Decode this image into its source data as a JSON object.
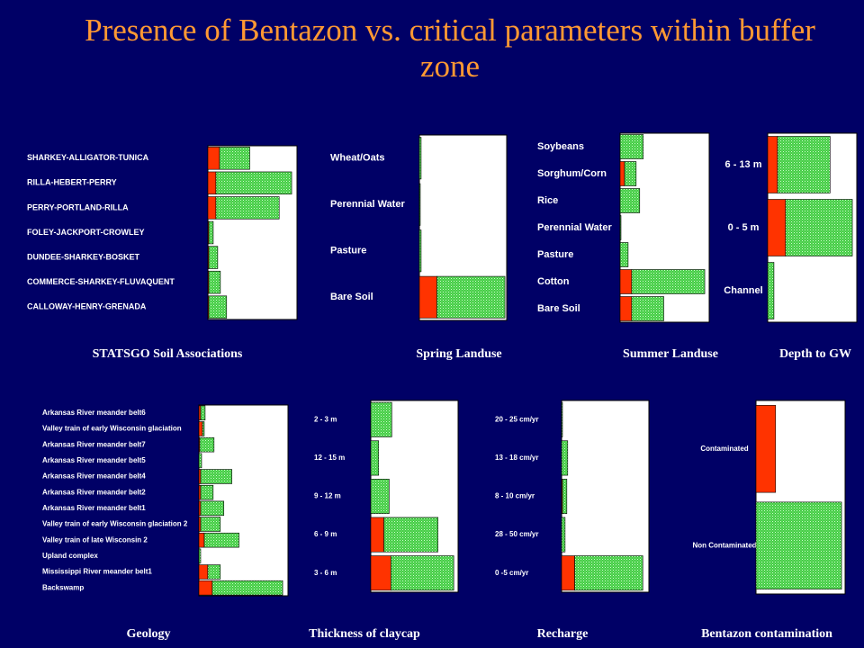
{
  "title": "Presence of Bentazon vs. critical parameters within buffer zone",
  "chart_data": [
    {
      "type": "bar",
      "title": "STATSGO Soil Associations",
      "orientation": "horizontal",
      "stacked": true,
      "xlim": [
        0,
        100
      ],
      "categories": [
        "SHARKEY-ALLIGATOR-TUNICA",
        "RILLA-HEBERT-PERRY",
        "PERRY-PORTLAND-RILLA",
        "FOLEY-JACKPORT-CROWLEY",
        "DUNDEE-SHARKEY-BOSKET",
        "COMMERCE-SHARKEY-FLUVAQUENT",
        "CALLOWAY-HENRY-GRENADA"
      ],
      "series": [
        {
          "color": "#ff3300",
          "values": [
            13,
            9,
            9,
            1,
            1,
            1,
            1
          ]
        },
        {
          "color": "#33cc33",
          "values": [
            34,
            85,
            71,
            5,
            10,
            13,
            20
          ]
        }
      ]
    },
    {
      "type": "bar",
      "title": "Spring Landuse",
      "orientation": "horizontal",
      "stacked": true,
      "xlim": [
        0,
        100
      ],
      "categories": [
        "Wheat/Oats",
        "Perennial Water",
        "Pasture",
        "Bare Soil"
      ],
      "series": [
        {
          "color": "#ff3300",
          "values": [
            0,
            0,
            0,
            20
          ]
        },
        {
          "color": "#33cc33",
          "values": [
            2,
            1,
            2,
            78
          ]
        }
      ]
    },
    {
      "type": "bar",
      "title": "Summer Landuse",
      "orientation": "horizontal",
      "stacked": true,
      "xlim": [
        0,
        100
      ],
      "categories": [
        "Soybeans",
        "Sorghum/Corn",
        "Rice",
        "Perennial Water",
        "Pasture",
        "Cotton",
        "Bare Soil"
      ],
      "series": [
        {
          "color": "#ff3300",
          "values": [
            0,
            5,
            0,
            0,
            0,
            13,
            13
          ]
        },
        {
          "color": "#33cc33",
          "values": [
            26,
            13,
            22,
            1,
            9,
            82,
            36
          ]
        }
      ]
    },
    {
      "type": "bar",
      "title": "Depth to GW",
      "orientation": "horizontal",
      "stacked": true,
      "xlim": [
        0,
        100
      ],
      "categories": [
        "6 - 13 m",
        "0 - 5 m",
        "Channel"
      ],
      "series": [
        {
          "color": "#ff3300",
          "values": [
            11,
            20,
            0
          ]
        },
        {
          "color": "#33cc33",
          "values": [
            59,
            75,
            7
          ]
        }
      ]
    },
    {
      "type": "bar",
      "title": "Geology",
      "orientation": "horizontal",
      "stacked": true,
      "xlim": [
        0,
        100
      ],
      "categories": [
        "Arkansas River meander belt6",
        "Valley train of early Wisconsin glaciation",
        "Arkansas River meander belt7",
        "Arkansas River meander belt5",
        "Arkansas River meander belt4",
        "Arkansas River meander belt2",
        "Arkansas River meander belt1",
        "Valley train of early Wisconsin glaciation 2",
        "Valley train of late Wisconsin 2",
        "Upland complex",
        "Mississippi River meander belt1",
        "Backswamp"
      ],
      "series": [
        {
          "color": "#ff3300",
          "values": [
            2,
            4,
            1,
            0,
            2,
            2,
            2,
            2,
            6,
            0,
            10,
            15
          ]
        },
        {
          "color": "#33cc33",
          "values": [
            5,
            2,
            16,
            3,
            35,
            14,
            26,
            22,
            39,
            2,
            14,
            79
          ]
        }
      ]
    },
    {
      "type": "bar",
      "title": "Thickness of claycap",
      "orientation": "horizontal",
      "stacked": true,
      "xlim": [
        0,
        100
      ],
      "categories": [
        "2 - 3 m",
        "12 - 15 m",
        "9 - 12 m",
        "6 - 9 m",
        "3 - 6 m"
      ],
      "series": [
        {
          "color": "#ff3300",
          "values": [
            0,
            0,
            0,
            15,
            23
          ]
        },
        {
          "color": "#33cc33",
          "values": [
            24,
            9,
            21,
            62,
            72
          ]
        }
      ]
    },
    {
      "type": "bar",
      "title": "Recharge",
      "orientation": "horizontal",
      "stacked": true,
      "xlim": [
        0,
        100
      ],
      "categories": [
        "20 - 25 cm/yr",
        "13 - 18 cm/yr",
        "8 - 10 cm/yr",
        "28 - 50 cm/yr",
        "0 -5 cm/yr"
      ],
      "series": [
        {
          "color": "#ff3300",
          "values": [
            0,
            0,
            1,
            0,
            15
          ]
        },
        {
          "color": "#33cc33",
          "values": [
            1,
            7,
            5,
            4,
            78
          ]
        }
      ]
    },
    {
      "type": "bar",
      "title": "Bentazon contamination",
      "orientation": "horizontal",
      "stacked": true,
      "xlim": [
        0,
        100
      ],
      "categories": [
        "Contaminated",
        "Non Contaminated"
      ],
      "series": [
        {
          "color": "#ff3300",
          "values": [
            22,
            0
          ]
        },
        {
          "color": "#33cc33",
          "values": [
            0,
            96
          ]
        }
      ]
    }
  ]
}
